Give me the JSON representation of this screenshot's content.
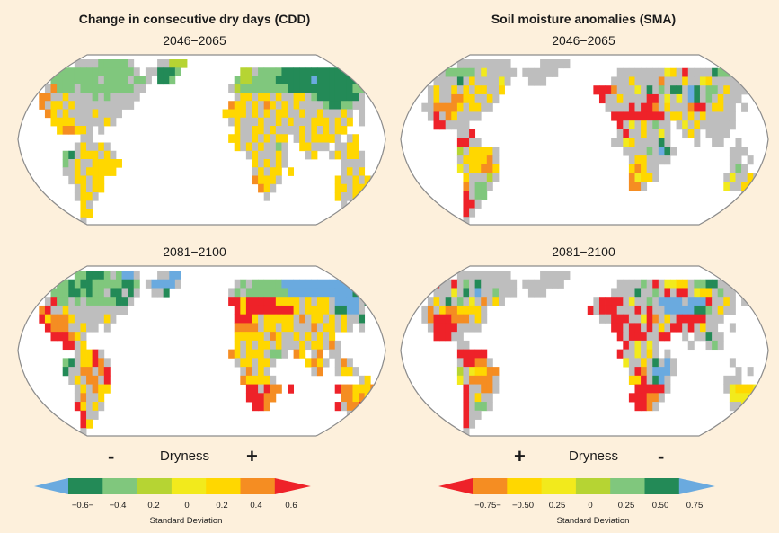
{
  "panels": {
    "cdd": {
      "title": "Change in consecutive dry days (CDD)",
      "periods": [
        "2046−2065",
        "2081−2100"
      ]
    },
    "sma": {
      "title": "Soil moisture anomalies (SMA)",
      "periods": [
        "2046−2065",
        "2081−2100"
      ]
    }
  },
  "colors": {
    "background": "#fdf0dc",
    "ocean": "#ffffff",
    "land_no_signal": "#bebebe",
    "outline": "#8c8c8c",
    "scale": [
      "#6aaadf",
      "#238a57",
      "#80c77d",
      "#b6d433",
      "#f2ea1c",
      "#ffd700",
      "#f58d22",
      "#ee2229"
    ]
  },
  "colorbars": {
    "cdd": {
      "heading": "Dryness",
      "sign_left": "-",
      "sign_right": "+",
      "ticks": [
        "−0.6−",
        "−0.4",
        "0.2",
        "0",
        "0.2",
        "0.4",
        "0.6"
      ],
      "xlabel": "Standard Deviation",
      "order": [
        0,
        1,
        2,
        3,
        4,
        5,
        6,
        7
      ]
    },
    "sma": {
      "heading": "Dryness",
      "sign_left": "+",
      "sign_right": "-",
      "ticks": [
        "−0.75−",
        "−0.50",
        "0.25",
        "0",
        "0.25",
        "0.50",
        "0.75"
      ],
      "xlabel": "Standard Deviation",
      "order": [
        7,
        6,
        5,
        4,
        3,
        2,
        1,
        0
      ]
    }
  },
  "chart_data": [
    {
      "type": "heatmap",
      "title": "Change in consecutive dry days (CDD)",
      "subtitle": "2046−2065",
      "legend": "0=blue(<-0.6) 1=dark green 2=light green 3=yellow-green 4=yellow 5=gold 6=orange 7=red(>0.6) g=land, no significant change",
      "grid": [
        "..........gggg22222g....gg333..................................",
        ".......2222222222222g.gg1112..........33g2222111111111111......",
        "......22222222g2222g22g.112..........2332222111111011111111....",
        ".....g6222g222222222gg..............g3222222221111111111122g...",
        "....66gg5gggg2g2ggggg................g55g55g5gg55g21111111g....",
        "....6g55g5gggggggggg................655g5g65g5g5gggg21122gg....",
        ".....65g5gggg5gggg.................5555g5g5g55gg5gg5ggg5g.g....",
        "......5555ggggg5g...................g5ggg5gg5g5ggg555g5g5.g....",
        ".......56655g.g......................5gg55g5gggg5g5g5g55.......",
        "...........gg.......................55gg5g5g55.g5g5555g.g5.....",
        "..........g5gg5g.....................5g5g5gg2g..55ggg.gg55.....",
        "........21g555g5g......................g5ggg5g...g5..g5g55g....",
        "........2g5gg55555......................5g5g5g.........gggg.....",
        "........gg5g55555.......................g5g55.5........g5g5....",
        ".........g55g55.........................6555g.........5gg5g5g...",
        "..........g5g55..........................65g..........55g5555...",
        "..........g55g............................g...........5gg55....",
        "...........5g..........................................g.......",
        "...........55.........................................................",
        "...........g..................................................."
      ]
    },
    {
      "type": "heatmap",
      "title": "Soil moisture anomalies (SMA)",
      "subtitle": "2046−2065",
      "legend": "0=blue(<-0.75) 1=dark green 2=light green 3=yellow-green 4=yellow 5=gold 6=orange 7=red(>0.75) g=land, no significant change",
      "grid": [
        "..........ggggggggg.....ggggg..................................",
        ".......g22222g4ggggg.gggggg..........gggggggg45g7gggg12222g....",
        "......gggg1g5gggg4g...ggg...........ggg5gggg6ggg5gg45ggggg.....",
        ".....g5gg5g5g55gg5...............7776ggg4g1g2g11g01g22g5ggg....",
        ".....g5gg6655gg5g.................7gg5gggg77g4g4g01g2g5ggg.....",
        "....gg66665g55gg...................gggg7g776g5ggg677g55gg.g....",
        ".....g7g65gggg......................777777777g55g5g5ggggg......",
        "......77gggg.........................7g4g5g2gg.g4g5gggggg.......",
        "..........gg7........................g7gg5gg4g..g5g.gggg.......",
        "..........77gg......................gg45gggg1g....g..gg..g.....",
        "..........3g5555g.....................gggg2g01g.........ggg....",
        "..........g55556g......................g55gggg..........gg.g...",
        "..........4g55665......................565gg............g2g.....",
        "...........5ggg3g......................6455g...........g4gg5g...",
        "...........6g22g.......................66g.............4gg55g...",
        "...........7g22...........................................g......",
        "...........77g.................................................",
        "...........7g..................................................",
        "...........g..................................................."
      ]
    },
    {
      "type": "heatmap",
      "title": "Change in consecutive dry days (CDD)",
      "subtitle": "2081−2100",
      "legend": "0=blue(<-0.6) 1=dark green 2=light green 3=yellow-green 4=yellow 5=gold 6=orange 7=red(>0.6) g=land, no significant change",
      "grid": [
        "..........221112g200g...gg00...................................",
        ".......22121122222112.g0000g.........g2g22222000000000000......",
        "......222112122g11g1g..gg1..........g2g2222222000000000001g....",
        ".....g722g2g2222211g................775777775555g5g55g0000g1....",
        "....67gg5gggggggggg..................75777777775g5555g1100g....",
        "....756665ggggg5g....................7775g55555g6g55g5g5gg1....",
        ".....7666gg5gg.g.....................6666g55g55ggg6g55g5g.g....",
        "......77765g.........................55555g65gg5g5g5g5.........",
        "........77g5.........................5g5g55g5ggg5g55g6g........",
        "..........g557g.....................65g555g22g.65.g6.gg........",
        "........21g5576g.....................g55g55g.....565g.g6g......",
        "........1gg66g67......................g6g5g.......g6..g55g.....",
        ".........g5g66g7......................65555g..............g5...",
        "..........g5g655.......................77g766.7.......7665556...",
        "..........g6gg5........................77766...........66565....",
        "..........75g5g.........................776...........7g6677g...",
        "...........7gg..........................................g.......",
        "...........75..................................................",
        "...........g..................................................."
      ]
    },
    {
      "type": "heatmap",
      "title": "Soil moisture anomalies (SMA)",
      "subtitle": "2081−2100",
      "legend": "0=blue(<-0.75) 1=dark green 2=light green 3=yellow-green 4=yellow 5=gold 6=orange 7=red(>0.75) g=land, no significant change",
      "grid": [
        "..........ggggggggg.....ggggg..................................",
        "......7gg7g2g1gggggg.ggggggg.........gggg2g7g4455g2211ggg......",
        "......ggg4g1g0gg2ggg..ggg...........gggg1gg2g7g77g455g2gg......",
        ".....g5g1g2g4g6g5g...............g7777g4gg2g0000g0007gg5g.g....",
        "....g6g5665555g.................7g777ggg7g7gg00000112g5gg......",
        "....g6777666g5g...................gg777gg476g5g77777ggg........",
        ".....g7777gggg......................77g77g7g5g77g7g5gg..g......",
        "......777gg..........................7g777gg77..g.gg1gg.........",
        "..........gg..........................7g4g4g.....g..g2g.........",
        "..........77777......................7gg4g5g.g.................",
        "..........g7766g......................4gg5g1g0g.........g......",
        "..........3g45566......................g76g000g..........g.g...",
        "..........4g6666g......................557g10g.........ggg......",
        "...........7gg66g.......................77777g.........g45554...",
        "...........7g5gg.......................77766g...........44444...",
        "...........7g22g........................776g............gg4g....",
        "...........7gg..................................................",
        "...........7g..................................................",
        "...........g..................................................."
      ]
    }
  ]
}
